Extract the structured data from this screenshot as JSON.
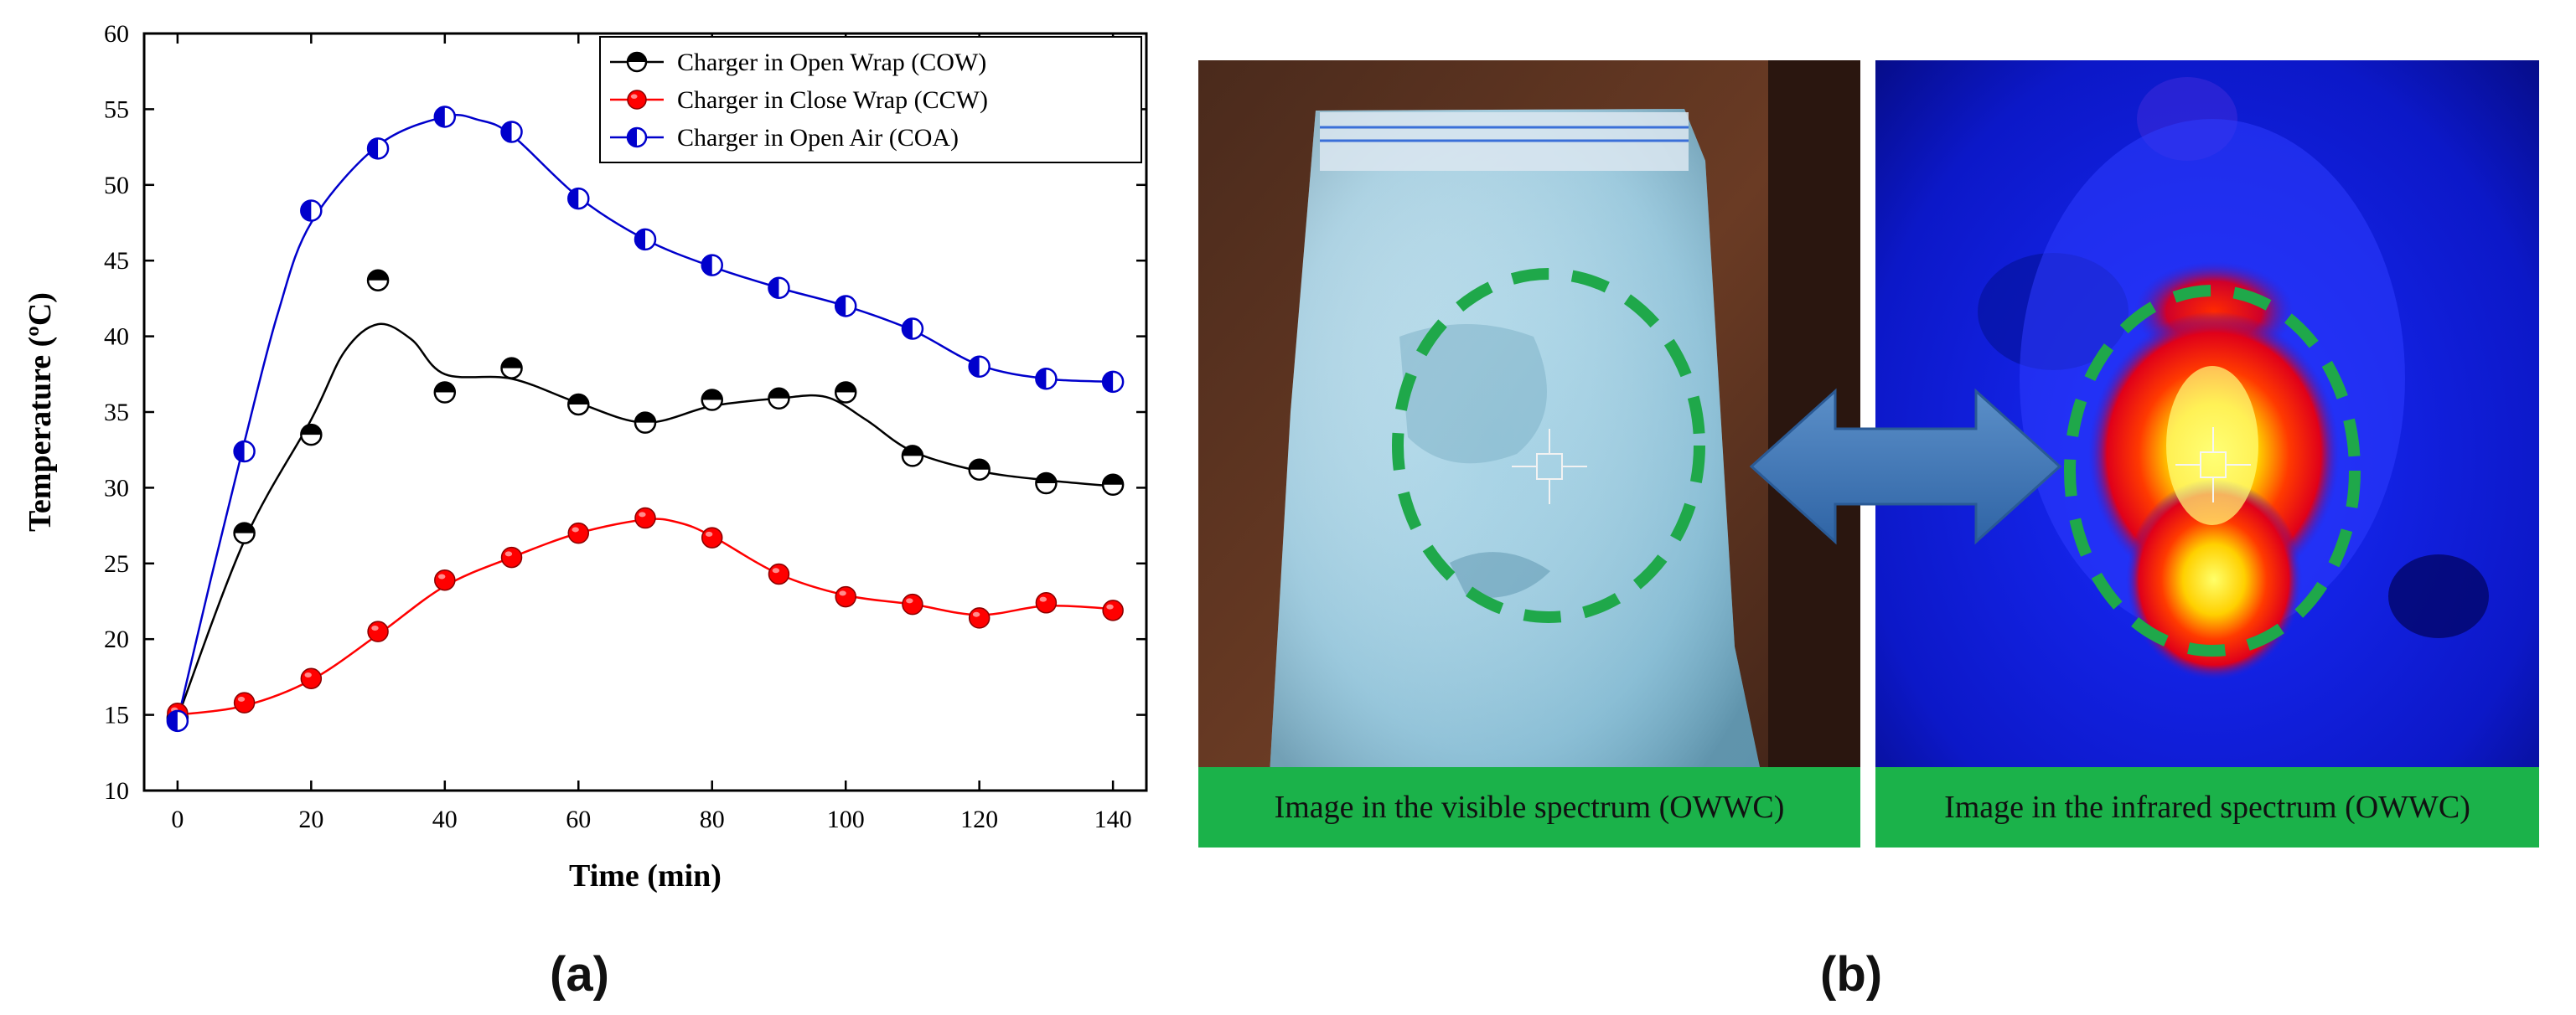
{
  "chart_data": {
    "type": "scatter",
    "xlabel": "Time (min)",
    "ylabel": "Temperature (ºC)",
    "xlim": [
      -5,
      145
    ],
    "ylim": [
      10,
      60
    ],
    "xticks": [
      0,
      20,
      40,
      60,
      80,
      100,
      120,
      140
    ],
    "yticks": [
      10,
      15,
      20,
      25,
      30,
      35,
      40,
      45,
      50,
      55,
      60
    ],
    "legend_position": "top-right",
    "series": [
      {
        "name": "Charger in Open Wrap (COW)",
        "color": "#000000",
        "marker": "half-filled-circle",
        "x": [
          0,
          10,
          20,
          30,
          40,
          50,
          60,
          70,
          80,
          90,
          100,
          110,
          120,
          130,
          140
        ],
        "y": [
          14.8,
          27.0,
          33.5,
          43.7,
          36.3,
          37.9,
          35.5,
          34.3,
          35.8,
          35.9,
          36.3,
          32.1,
          31.2,
          30.3,
          30.2
        ],
        "curve": [
          [
            0,
            14.8
          ],
          [
            10,
            26.5
          ],
          [
            20,
            34.5
          ],
          [
            25,
            39.0
          ],
          [
            30,
            40.8
          ],
          [
            35,
            39.8
          ],
          [
            40,
            37.5
          ],
          [
            50,
            37.2
          ],
          [
            60,
            35.6
          ],
          [
            70,
            34.3
          ],
          [
            80,
            35.4
          ],
          [
            90,
            35.9
          ],
          [
            97,
            36.0
          ],
          [
            103,
            34.5
          ],
          [
            110,
            32.4
          ],
          [
            120,
            31.1
          ],
          [
            130,
            30.5
          ],
          [
            140,
            30.1
          ]
        ]
      },
      {
        "name": "Charger in Close Wrap (CCW)",
        "color": "#ff0000",
        "marker": "filled-circle",
        "x": [
          0,
          10,
          20,
          30,
          40,
          50,
          60,
          70,
          80,
          90,
          100,
          110,
          120,
          130,
          140
        ],
        "y": [
          15.1,
          15.8,
          17.4,
          20.5,
          23.9,
          25.4,
          27.0,
          28.0,
          26.7,
          24.3,
          22.8,
          22.3,
          21.4,
          22.4,
          21.9
        ],
        "curve": [
          [
            0,
            15.0
          ],
          [
            10,
            15.6
          ],
          [
            20,
            17.3
          ],
          [
            30,
            20.3
          ],
          [
            40,
            23.5
          ],
          [
            50,
            25.4
          ],
          [
            60,
            27.0
          ],
          [
            70,
            27.9
          ],
          [
            75,
            27.7
          ],
          [
            80,
            26.8
          ],
          [
            90,
            24.3
          ],
          [
            100,
            22.9
          ],
          [
            110,
            22.3
          ],
          [
            120,
            21.6
          ],
          [
            130,
            22.2
          ],
          [
            140,
            22.0
          ]
        ]
      },
      {
        "name": "Charger in Open Air (COA)",
        "color": "#0000cc",
        "marker": "half-filled-circle",
        "x": [
          0,
          10,
          20,
          30,
          40,
          50,
          60,
          70,
          80,
          90,
          100,
          110,
          120,
          130,
          140
        ],
        "y": [
          14.6,
          32.4,
          48.3,
          52.4,
          54.5,
          53.5,
          49.1,
          46.4,
          44.7,
          43.2,
          42.0,
          40.5,
          38.0,
          37.2,
          37.0
        ],
        "curve": [
          [
            0,
            14.6
          ],
          [
            5,
            24.0
          ],
          [
            10,
            33.0
          ],
          [
            15,
            41.5
          ],
          [
            20,
            47.5
          ],
          [
            30,
            52.6
          ],
          [
            40,
            54.5
          ],
          [
            45,
            54.3
          ],
          [
            50,
            53.3
          ],
          [
            60,
            49.2
          ],
          [
            70,
            46.4
          ],
          [
            80,
            44.6
          ],
          [
            90,
            43.2
          ],
          [
            100,
            42.0
          ],
          [
            110,
            40.4
          ],
          [
            120,
            38.1
          ],
          [
            130,
            37.2
          ],
          [
            140,
            37.0
          ]
        ]
      }
    ]
  },
  "panel_a_label": "(a)",
  "panel_b_label": "(b)",
  "figure_b": {
    "visible_caption": "Image in the visible spectrum (OWWC)",
    "infrared_caption": "Image in the infrared spectrum (OWWC)"
  }
}
